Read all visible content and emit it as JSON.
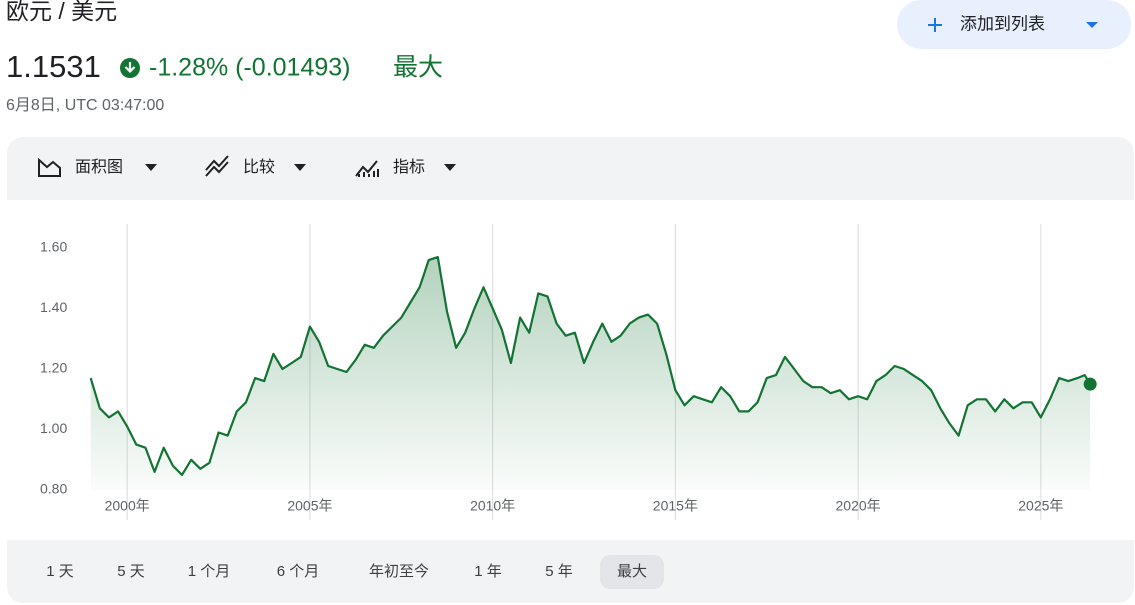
{
  "header": {
    "title": "欧元 / 美元",
    "price": "1.1531",
    "change": "-1.28% (-0.01493)",
    "period": "最大",
    "timestamp": "6月8日, UTC 03:47:00",
    "watchlist_button": "添加到列表"
  },
  "toolbar": [
    "面积图",
    "比较",
    "指标"
  ],
  "ranges": [
    {
      "label": "1 天"
    },
    {
      "label": "5 天"
    },
    {
      "label": "1 个月"
    },
    {
      "label": "6 个月"
    },
    {
      "label": "年初至今"
    },
    {
      "label": "1 年"
    },
    {
      "label": "5 年"
    },
    {
      "label": "最大",
      "selected": true
    }
  ],
  "chart_data": {
    "type": "area",
    "color": "#137333",
    "grid": true,
    "x": [
      1999.0,
      1999.25,
      1999.5,
      1999.75,
      2000.0,
      2000.25,
      2000.5,
      2000.75,
      2001.0,
      2001.25,
      2001.5,
      2001.75,
      2002.0,
      2002.25,
      2002.5,
      2002.75,
      2003.0,
      2003.25,
      2003.5,
      2003.75,
      2004.0,
      2004.25,
      2004.5,
      2004.75,
      2005.0,
      2005.25,
      2005.5,
      2005.75,
      2006.0,
      2006.25,
      2006.5,
      2006.75,
      2007.0,
      2007.25,
      2007.5,
      2007.75,
      2008.0,
      2008.25,
      2008.5,
      2008.75,
      2009.0,
      2009.25,
      2009.5,
      2009.75,
      2010.0,
      2010.25,
      2010.5,
      2010.75,
      2011.0,
      2011.25,
      2011.5,
      2011.75,
      2012.0,
      2012.25,
      2012.5,
      2012.75,
      2013.0,
      2013.25,
      2013.5,
      2013.75,
      2014.0,
      2014.25,
      2014.5,
      2014.75,
      2015.0,
      2015.25,
      2015.5,
      2015.75,
      2016.0,
      2016.25,
      2016.5,
      2016.75,
      2017.0,
      2017.25,
      2017.5,
      2017.75,
      2018.0,
      2018.25,
      2018.5,
      2018.75,
      2019.0,
      2019.25,
      2019.5,
      2019.75,
      2020.0,
      2020.25,
      2020.5,
      2020.75,
      2021.0,
      2021.25,
      2021.5,
      2021.75,
      2022.0,
      2022.25,
      2022.5,
      2022.75,
      2023.0,
      2023.25,
      2023.5,
      2023.75,
      2024.0,
      2024.25,
      2024.5,
      2024.75,
      2025.0,
      2025.25,
      2025.5,
      2025.75,
      2026.0,
      2026.2,
      2026.35
    ],
    "values": [
      1.17,
      1.07,
      1.04,
      1.06,
      1.01,
      0.95,
      0.94,
      0.86,
      0.94,
      0.88,
      0.85,
      0.9,
      0.87,
      0.89,
      0.99,
      0.98,
      1.06,
      1.09,
      1.17,
      1.16,
      1.25,
      1.2,
      1.22,
      1.24,
      1.34,
      1.29,
      1.21,
      1.2,
      1.19,
      1.23,
      1.28,
      1.27,
      1.31,
      1.34,
      1.37,
      1.42,
      1.47,
      1.56,
      1.57,
      1.39,
      1.27,
      1.32,
      1.4,
      1.47,
      1.4,
      1.33,
      1.22,
      1.37,
      1.32,
      1.45,
      1.44,
      1.35,
      1.31,
      1.32,
      1.22,
      1.29,
      1.35,
      1.29,
      1.31,
      1.35,
      1.37,
      1.38,
      1.35,
      1.25,
      1.13,
      1.08,
      1.11,
      1.1,
      1.09,
      1.14,
      1.11,
      1.06,
      1.06,
      1.09,
      1.17,
      1.18,
      1.24,
      1.2,
      1.16,
      1.14,
      1.14,
      1.12,
      1.13,
      1.1,
      1.11,
      1.1,
      1.16,
      1.18,
      1.21,
      1.2,
      1.18,
      1.16,
      1.13,
      1.07,
      1.02,
      0.98,
      1.08,
      1.1,
      1.1,
      1.06,
      1.1,
      1.07,
      1.09,
      1.09,
      1.04,
      1.1,
      1.17,
      1.16,
      1.17,
      1.18,
      1.15
    ],
    "xlim": [
      1998.9,
      2026.4
    ],
    "ylim": [
      0.8,
      1.6
    ],
    "xticks": [
      {
        "value": 2000,
        "label": "2000年"
      },
      {
        "value": 2005,
        "label": "2005年"
      },
      {
        "value": 2010,
        "label": "2010年"
      },
      {
        "value": 2015,
        "label": "2015年"
      },
      {
        "value": 2020,
        "label": "2020年"
      },
      {
        "value": 2025,
        "label": "2025年"
      }
    ],
    "yticks": [
      {
        "value": 0.8,
        "label": "0.80"
      },
      {
        "value": 1.0,
        "label": "1.00"
      },
      {
        "value": 1.2,
        "label": "1.20"
      },
      {
        "value": 1.4,
        "label": "1.40"
      },
      {
        "value": 1.6,
        "label": "1.60"
      }
    ]
  }
}
